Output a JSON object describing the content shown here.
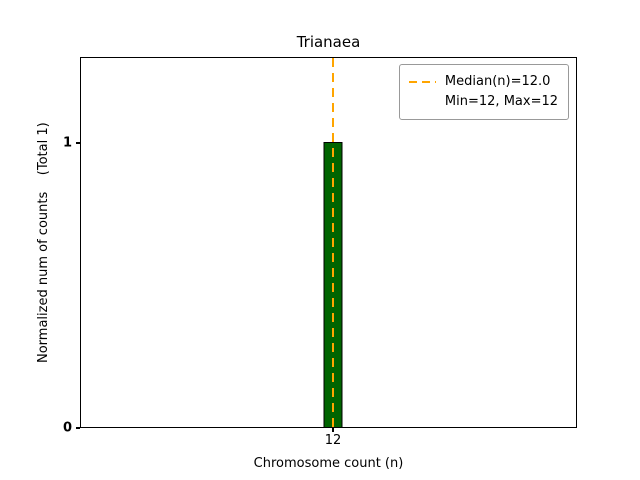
{
  "chart_data": {
    "type": "bar",
    "title": "Trianaea",
    "xlabel": "Chromosome count (n)",
    "ylabel": "Normalized num of counts    (Total 1)",
    "categories": [
      "12"
    ],
    "values": [
      1
    ],
    "ylim": [
      0,
      1.3
    ],
    "yticks": [
      0,
      1
    ],
    "ytick_labels": [
      "0",
      "1"
    ],
    "bar_color": "#006400",
    "bar_edge_color": "#000000",
    "median_line": {
      "x": 12.0,
      "color": "#FFA500",
      "style": "dashed"
    },
    "legend": {
      "position": "upper right",
      "entries": [
        {
          "label": "Median(n)=12.0",
          "marker": "orange-dashed-line"
        },
        {
          "label": "Min=12, Max=12",
          "marker": "none"
        }
      ]
    }
  }
}
